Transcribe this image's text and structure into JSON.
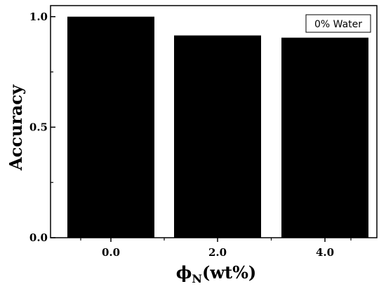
{
  "chart_data": {
    "type": "bar",
    "categories": [
      "0.0",
      "2.0",
      "4.0"
    ],
    "values": [
      1.0,
      0.915,
      0.905
    ],
    "xlabel": {
      "symbol": "ϕ",
      "subscript": "N",
      "suffix": "(wt%)"
    },
    "ylabel": "Accuracy",
    "ylim": [
      0,
      1.05
    ],
    "yticks": [
      0.0,
      0.5,
      1.0
    ],
    "ytick_labels": [
      "0.0",
      "0.5",
      "1.0"
    ],
    "grid": false,
    "legend": {
      "text": "0% Water",
      "placement": "top-right"
    },
    "colors": {
      "bar": "#000000",
      "axis": "#000000",
      "background": "#ffffff"
    }
  }
}
